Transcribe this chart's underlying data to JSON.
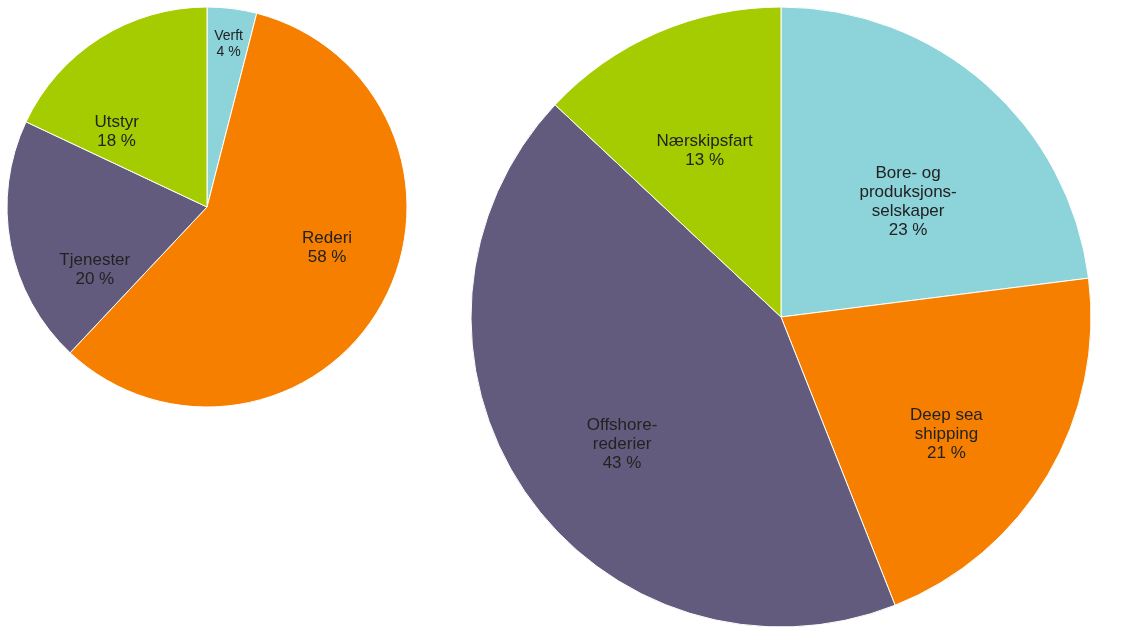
{
  "chart_data": [
    {
      "type": "pie",
      "categories": [
        "Verft",
        "Rederi",
        "Tjenester",
        "Utstyr"
      ],
      "values": [
        4,
        58,
        20,
        18
      ],
      "colors": [
        "#8dd3da",
        "#f77f00",
        "#635b7d",
        "#a5cc00"
      ],
      "value_labels": [
        "4 %",
        "58 %",
        "20 %",
        "18 %"
      ]
    },
    {
      "type": "pie",
      "categories": [
        "Bore- og\nproduksjons-\nselskaper",
        "Deep sea\nshipping",
        "Offshore-\nrederier",
        "Nærskipsfart"
      ],
      "values": [
        23,
        21,
        43,
        13
      ],
      "colors": [
        "#8dd3da",
        "#f77f00",
        "#635b7d",
        "#a5cc00"
      ],
      "value_labels": [
        "23 %",
        "21 %",
        "43 %",
        "13 %"
      ]
    }
  ]
}
